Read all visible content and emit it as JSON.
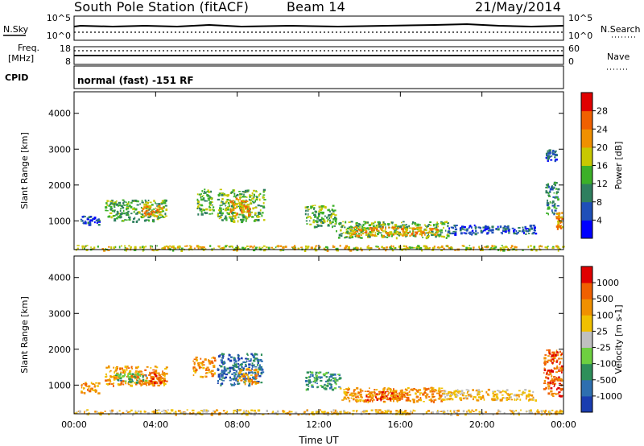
{
  "header": {
    "station": "South Pole Station (fitACF)",
    "beam": "Beam 14",
    "date": "21/May/2014"
  },
  "top_panels": {
    "nsky_label": "N.Sky",
    "nsky_ticks": [
      "10^5",
      "10^0"
    ],
    "nsearch_label": "N.Search",
    "nsearch_ticks": [
      "10^5",
      "10^0"
    ],
    "freq_label": "Freq.",
    "freq_unit": "[MHz]",
    "freq_ticks": [
      "18",
      "8"
    ],
    "nave_label": "Nave",
    "nave_ticks": [
      "60",
      "0"
    ],
    "cpid_label": "CPID",
    "cpid_text": "normal (fast) -151 RF"
  },
  "colors": {
    "power": [
      "#0000ff",
      "#1f4fb8",
      "#2f7f5f",
      "#3cb028",
      "#c8c800",
      "#f09000",
      "#f06000",
      "#e00000"
    ],
    "velocity": [
      "#1a3db0",
      "#2e6fb0",
      "#2e8f5a",
      "#6ed040",
      "#c0c0c0",
      "#f0c000",
      "#f09000",
      "#f06000",
      "#e00000"
    ]
  },
  "chart_data": [
    {
      "type": "heatmap",
      "title": "Power",
      "xlabel": "Time UT",
      "ylabel": "Slant Range [km]",
      "x_ticks": [
        "00:00",
        "04:00",
        "08:00",
        "12:00",
        "16:00",
        "20:00",
        "00:00"
      ],
      "y_ticks": [
        "1000",
        "2000",
        "3000",
        "4000"
      ],
      "ylim": [
        200,
        4600
      ],
      "colorbar": {
        "label": "Power [dB]",
        "ticks": [
          "4",
          "8",
          "12",
          "16",
          "20",
          "24",
          "28"
        ]
      },
      "regions": [
        {
          "t0": 0.3,
          "t1": 1.2,
          "r0": 900,
          "r1": 1150,
          "level": 1
        },
        {
          "t0": 1.5,
          "t1": 4.5,
          "r0": 1000,
          "r1": 1600,
          "level": 3
        },
        {
          "t0": 3.3,
          "t1": 4.3,
          "r0": 1150,
          "r1": 1450,
          "level": 5
        },
        {
          "t0": 6.0,
          "t1": 6.8,
          "r0": 1200,
          "r1": 1900,
          "level": 3
        },
        {
          "t0": 7.0,
          "t1": 9.3,
          "r0": 1000,
          "r1": 1900,
          "level": 3
        },
        {
          "t0": 7.6,
          "t1": 8.6,
          "r0": 1150,
          "r1": 1650,
          "level": 5
        },
        {
          "t0": 11.3,
          "t1": 12.8,
          "r0": 850,
          "r1": 1450,
          "level": 3
        },
        {
          "t0": 12.8,
          "t1": 18.3,
          "r0": 550,
          "r1": 1000,
          "level": 3
        },
        {
          "t0": 13.5,
          "t1": 17.8,
          "r0": 600,
          "r1": 850,
          "level": 5
        },
        {
          "t0": 18.3,
          "t1": 22.6,
          "r0": 650,
          "r1": 900,
          "level": 1
        },
        {
          "t0": 23.1,
          "t1": 23.7,
          "r0": 1200,
          "r1": 2100,
          "level": 2
        },
        {
          "t0": 23.6,
          "t1": 23.9,
          "r0": 800,
          "r1": 1250,
          "level": 5
        },
        {
          "t0": 23.1,
          "t1": 23.6,
          "r0": 2700,
          "r1": 3000,
          "level": 1
        },
        {
          "t0": 0.0,
          "t1": 24.0,
          "r0": 200,
          "r1": 330,
          "level": 4
        }
      ]
    },
    {
      "type": "heatmap",
      "title": "Velocity",
      "xlabel": "Time UT",
      "ylabel": "Slant Range [km]",
      "x_ticks": [
        "00:00",
        "04:00",
        "08:00",
        "12:00",
        "16:00",
        "20:00",
        "00:00"
      ],
      "y_ticks": [
        "1000",
        "2000",
        "3000",
        "4000"
      ],
      "ylim": [
        200,
        4600
      ],
      "colorbar": {
        "label": "Velocity [m s-1]",
        "ticks": [
          "1000",
          "500",
          "100",
          "25",
          "-25",
          "-100",
          "-500",
          "-1000"
        ]
      },
      "regions": [
        {
          "t0": 0.3,
          "t1": 1.2,
          "r0": 800,
          "r1": 1100,
          "level": 6
        },
        {
          "t0": 1.5,
          "t1": 4.5,
          "r0": 1000,
          "r1": 1550,
          "level": 6
        },
        {
          "t0": 2.0,
          "t1": 3.5,
          "r0": 1100,
          "r1": 1350,
          "level": 2
        },
        {
          "t0": 3.7,
          "t1": 4.5,
          "r0": 1050,
          "r1": 1400,
          "level": 7
        },
        {
          "t0": 5.8,
          "t1": 6.9,
          "r0": 1250,
          "r1": 1800,
          "level": 6
        },
        {
          "t0": 7.0,
          "t1": 9.2,
          "r0": 1000,
          "r1": 1900,
          "level": 1
        },
        {
          "t0": 8.0,
          "t1": 9.0,
          "r0": 1050,
          "r1": 1500,
          "level": 6
        },
        {
          "t0": 11.3,
          "t1": 13.0,
          "r0": 900,
          "r1": 1400,
          "level": 2
        },
        {
          "t0": 13.0,
          "t1": 18.0,
          "r0": 550,
          "r1": 950,
          "level": 6
        },
        {
          "t0": 14.3,
          "t1": 16.5,
          "r0": 600,
          "r1": 850,
          "level": 7
        },
        {
          "t0": 18.0,
          "t1": 22.6,
          "r0": 600,
          "r1": 900,
          "level": 5
        },
        {
          "t0": 23.0,
          "t1": 23.9,
          "r0": 700,
          "r1": 2000,
          "level": 7
        },
        {
          "t0": 0.0,
          "t1": 24.0,
          "r0": 200,
          "r1": 330,
          "level": 5
        }
      ]
    }
  ]
}
